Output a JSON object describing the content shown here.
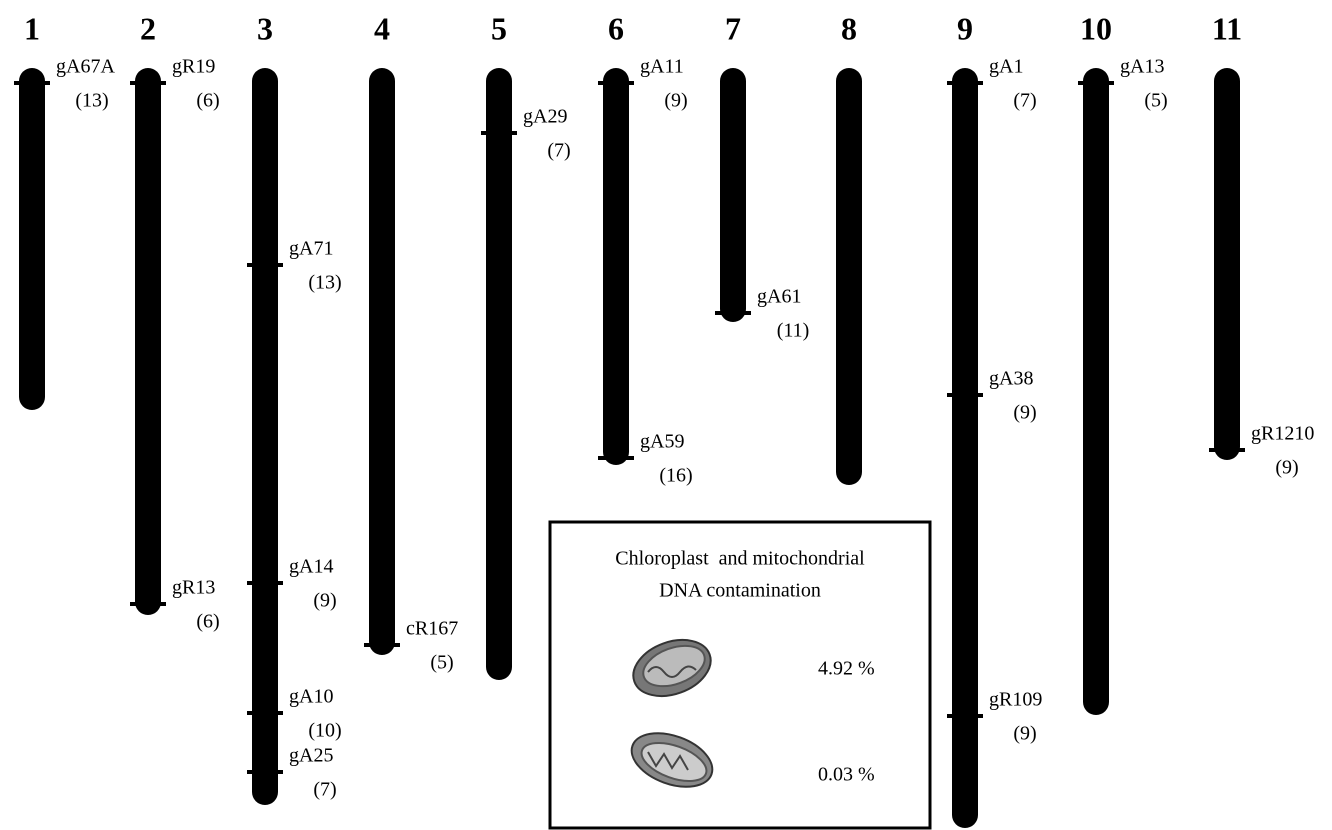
{
  "chromosomes": [
    {
      "label": "1",
      "markers": [
        {
          "name": "gA67A",
          "count": "(13)"
        }
      ]
    },
    {
      "label": "2",
      "markers": [
        {
          "name": "gR19",
          "count": "(6)"
        },
        {
          "name": "gR13",
          "count": "(6)"
        }
      ]
    },
    {
      "label": "3",
      "markers": [
        {
          "name": "gA71",
          "count": "(13)"
        },
        {
          "name": "gA14",
          "count": "(9)"
        },
        {
          "name": "gA10",
          "count": "(10)"
        },
        {
          "name": "gA25",
          "count": "(7)"
        }
      ]
    },
    {
      "label": "4",
      "markers": [
        {
          "name": "cR167",
          "count": "(5)"
        }
      ]
    },
    {
      "label": "5",
      "markers": [
        {
          "name": "gA29",
          "count": "(7)"
        }
      ]
    },
    {
      "label": "6",
      "markers": [
        {
          "name": "gA11",
          "count": "(9)"
        },
        {
          "name": "gA59",
          "count": "(16)"
        }
      ]
    },
    {
      "label": "7",
      "markers": [
        {
          "name": "gA61",
          "count": "(11)"
        }
      ]
    },
    {
      "label": "8",
      "markers": []
    },
    {
      "label": "9",
      "markers": [
        {
          "name": "gA1",
          "count": "(7)"
        },
        {
          "name": "gA38",
          "count": "(9)"
        },
        {
          "name": "gR109",
          "count": "(9)"
        }
      ]
    },
    {
      "label": "10",
      "markers": [
        {
          "name": "gA13",
          "count": "(5)"
        }
      ]
    },
    {
      "label": "11",
      "markers": [
        {
          "name": "gR1210",
          "count": "(9)"
        }
      ]
    }
  ],
  "inset": {
    "title_lines": [
      "Chloroplast  and mitochondrial",
      "DNA contamination"
    ],
    "items": [
      {
        "value": "4.92 %"
      },
      {
        "value": "0.03 %"
      }
    ]
  }
}
